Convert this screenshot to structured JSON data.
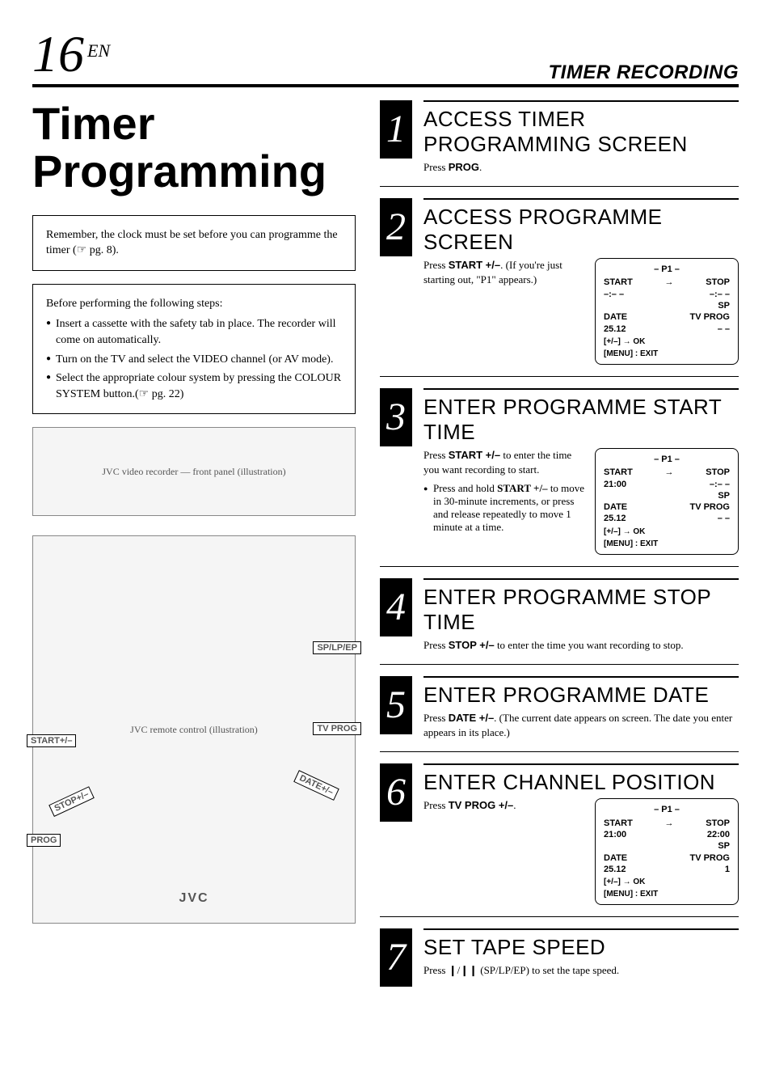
{
  "pageNumber": "16",
  "langTag": "EN",
  "sectionTitle": "TIMER RECORDING",
  "mainTitle": "Timer Programming",
  "reminderBox": "Remember, the clock must be set before you can programme the timer (☞ pg. 8).",
  "prepBox": {
    "intro": "Before performing the following steps:",
    "items": [
      "Insert a cassette with the safety tab in place. The recorder will come on automatically.",
      "Turn on the TV and select the VIDEO channel (or AV mode).",
      "Select the appropriate colour system by pressing the COLOUR SYSTEM button.(☞ pg. 22)"
    ]
  },
  "illustrations": {
    "vcrLabel": "JVC video recorder — front panel (illustration)",
    "remoteLabel": "JVC remote control (illustration)",
    "remoteCallouts": {
      "splpep": "SP/LP/EP",
      "tvprog": "TV PROG",
      "startpm": "START+/–",
      "datepm": "DATE+/–",
      "stoppm": "STOP+/–",
      "prog": "PROG",
      "brand": "JVC"
    }
  },
  "steps": [
    {
      "n": "1",
      "title": "ACCESS TIMER PROGRAMMING SCREEN",
      "body_html": "Press <strong>PROG</strong>.",
      "screen": null
    },
    {
      "n": "2",
      "title": "ACCESS PROGRAMME SCREEN",
      "body_html": "Press <strong>START +/–</strong>. (If you're just starting out, \"P1\" appears.)",
      "screen": {
        "p": "– P1 –",
        "startLabel": "START",
        "startVal": "–:– –",
        "stopLabel": "STOP",
        "stopVal": "–:– –",
        "sp": "SP",
        "dateLabel": "DATE",
        "dateVal": "25.12",
        "tvLabel": "TV PROG",
        "tvVal": "– –",
        "foot1": "[+/–] → OK",
        "foot2": "[MENU] : EXIT"
      }
    },
    {
      "n": "3",
      "title": "ENTER PROGRAMME START TIME",
      "body_html": "Press <strong>START +/–</strong> to enter the time you want recording to start.",
      "bullet_html": "Press and hold <strong>START +/–</strong> to move in 30-minute increments, or press and release repeatedly to move 1 minute at a time.",
      "screen": {
        "p": "– P1 –",
        "startLabel": "START",
        "startVal": "21:00",
        "stopLabel": "STOP",
        "stopVal": "–:– –",
        "sp": "SP",
        "dateLabel": "DATE",
        "dateVal": "25.12",
        "tvLabel": "TV PROG",
        "tvVal": "– –",
        "foot1": "[+/–] → OK",
        "foot2": "[MENU] : EXIT"
      }
    },
    {
      "n": "4",
      "title": "ENTER PROGRAMME STOP TIME",
      "body_html": "Press <strong>STOP +/–</strong> to enter the time you want recording to stop.",
      "screen": null
    },
    {
      "n": "5",
      "title": "ENTER PROGRAMME DATE",
      "body_html": "Press <strong>DATE +/–</strong>. (The current date appears on screen. The date you enter appears in its place.)",
      "screen": null
    },
    {
      "n": "6",
      "title": "ENTER CHANNEL POSITION",
      "body_html": "Press <strong>TV PROG +/–</strong>.",
      "screen": {
        "p": "– P1 –",
        "startLabel": "START",
        "startVal": "21:00",
        "stopLabel": "STOP",
        "stopVal": "22:00",
        "sp": "SP",
        "dateLabel": "DATE",
        "dateVal": "25.12",
        "tvLabel": "TV PROG",
        "tvVal": "1",
        "foot1": "[+/–] → OK",
        "foot2": "[MENU] : EXIT"
      }
    },
    {
      "n": "7",
      "title": "SET TAPE SPEED",
      "body_html": "Press  ❙/❙❙ (SP/LP/EP) to set the tape speed.",
      "screen": null
    }
  ],
  "colors": {
    "pageBg": "#ffffff",
    "text": "#000000",
    "rule": "#000000",
    "stepNumBg": "#000000",
    "stepNumFg": "#ffffff",
    "illusBg": "#f5f5f5",
    "illusBorder": "#888888"
  }
}
